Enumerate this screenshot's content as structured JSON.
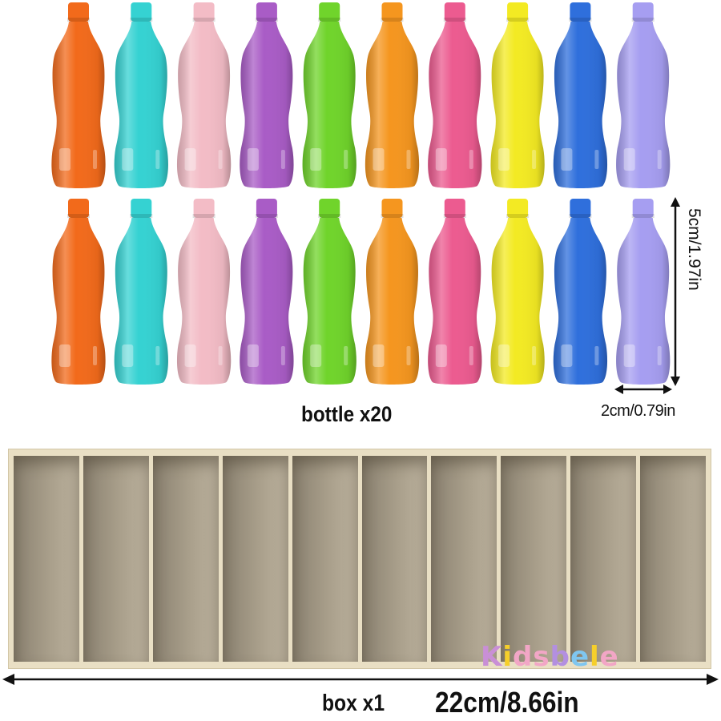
{
  "bottles": {
    "count_label": "bottle x20",
    "rows": 2,
    "colors": [
      "#f26a1b",
      "#35d2d2",
      "#f3bcc6",
      "#a95cc6",
      "#70d42b",
      "#f5961f",
      "#ec5b90",
      "#f3ea23",
      "#2f6fdc",
      "#a69ef1"
    ]
  },
  "dimensions": {
    "bottle_height": "5cm/1.97in",
    "bottle_width": "2cm/0.79in",
    "box_length": "22cm/8.66in"
  },
  "box": {
    "count_label": "box x1",
    "compartments": 10,
    "frame_color": "#e9dfc4"
  },
  "logo": {
    "text": "Kidsbele",
    "letter_colors": [
      "#c98fd6",
      "#f6cf2a",
      "#f2a6c6",
      "#f2a6c6",
      "#b38fe0",
      "#7fc6f0",
      "#f6cf2a",
      "#f2a6c6"
    ]
  }
}
